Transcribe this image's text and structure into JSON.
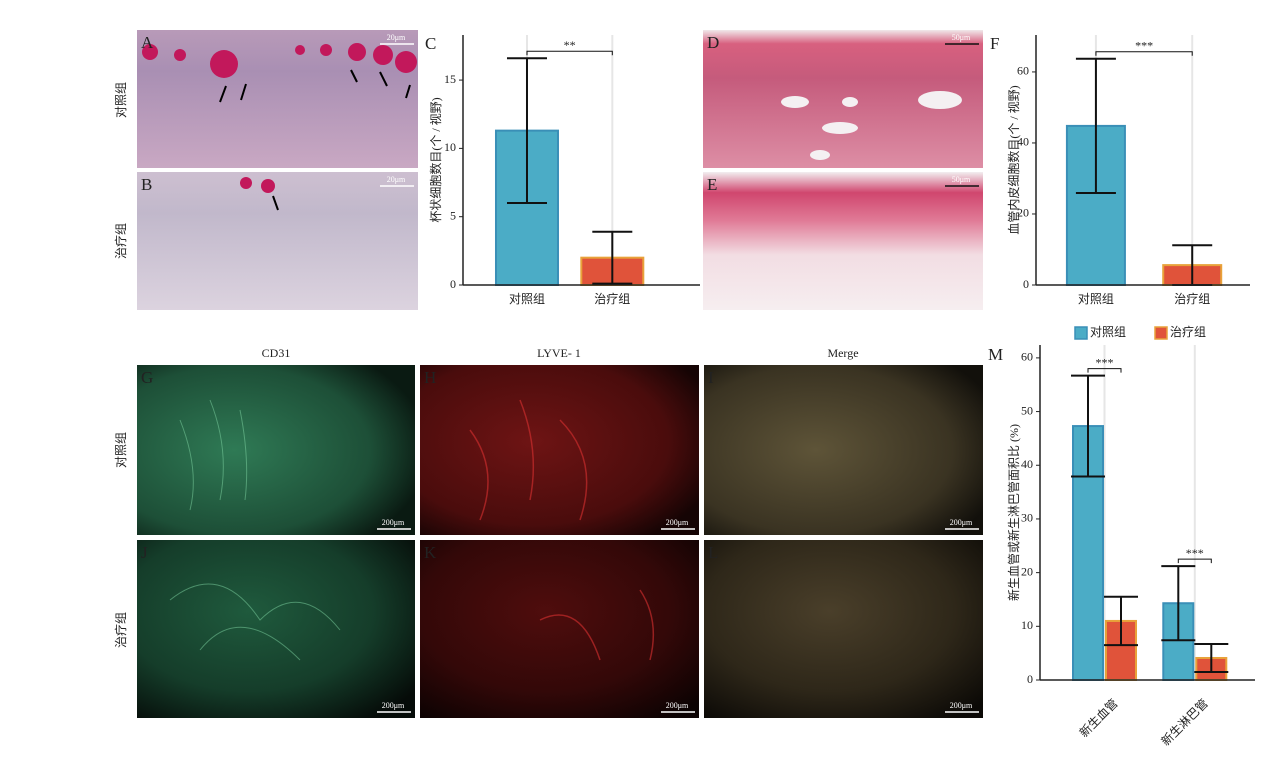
{
  "figure": {
    "panels": [
      {
        "label": "A",
        "scale_bar": "20μm"
      },
      {
        "label": "B",
        "scale_bar": "20μm"
      },
      {
        "label": "D",
        "scale_bar": "50μm"
      },
      {
        "label": "E",
        "scale_bar": "50μm"
      },
      {
        "label": "G",
        "scale_bar": "200μm"
      },
      {
        "label": "H",
        "scale_bar": "200μm"
      },
      {
        "label": "I",
        "scale_bar": "200μm"
      },
      {
        "label": "J",
        "scale_bar": "200μm"
      },
      {
        "label": "K",
        "scale_bar": "200μm"
      },
      {
        "label": "L",
        "scale_bar": "200μm"
      }
    ],
    "top_row_labels": [
      "对照组",
      "治疗组"
    ],
    "bottom_row_labels": [
      "对照组",
      "治疗组"
    ],
    "column_labels": [
      "CD31",
      "LYVE- 1",
      "Merge"
    ]
  },
  "chart_data": [
    {
      "type": "bar",
      "panel": "C",
      "y_label": "杯状细胞数目(个 / 视野)",
      "categories": [
        "对照组",
        "治疗组"
      ],
      "values": [
        11.3,
        2.0
      ],
      "errors": [
        5.3,
        1.9
      ],
      "colors": [
        "#4bacc6",
        "#e0533a"
      ],
      "edge_colors": [
        "#3a8fb7",
        "#e8a23a"
      ],
      "ylim": [
        0,
        18.3
      ],
      "yticks": [
        0,
        5,
        10,
        15
      ],
      "grid": true,
      "annotations": [
        "**"
      ]
    },
    {
      "type": "bar",
      "panel": "F",
      "y_label": "血管内皮细胞数目(个 / 视野)",
      "categories": [
        "对照组",
        "治疗组"
      ],
      "values": [
        44.8,
        5.6
      ],
      "errors": [
        18.9,
        5.6
      ],
      "colors": [
        "#4bacc6",
        "#e0533a"
      ],
      "edge_colors": [
        "#3a8fb7",
        "#e8a23a"
      ],
      "ylim": [
        0,
        70.4
      ],
      "yticks": [
        0,
        20,
        40,
        60
      ],
      "grid": true,
      "annotations": [
        "***"
      ]
    },
    {
      "type": "grouped_bar",
      "panel": "M",
      "y_label": "新生血管或新生淋巴管面积比 (%)",
      "categories": [
        "新生血管",
        "新生淋巴管"
      ],
      "series": [
        {
          "name": "对照组",
          "color": "#4bacc6",
          "edge_color": "#3a8fb7",
          "values": [
            47.3,
            14.3
          ],
          "errors": [
            9.4,
            6.9
          ]
        },
        {
          "name": "治疗组",
          "color": "#e0533a",
          "edge_color": "#e8a23a",
          "values": [
            11.0,
            4.1
          ],
          "errors": [
            4.5,
            2.6
          ]
        }
      ],
      "ylim": [
        0,
        62.4
      ],
      "yticks": [
        0,
        10,
        20,
        30,
        40,
        50,
        60
      ],
      "grid": true,
      "legend": "top",
      "annotations": [
        "***",
        "***"
      ]
    }
  ]
}
